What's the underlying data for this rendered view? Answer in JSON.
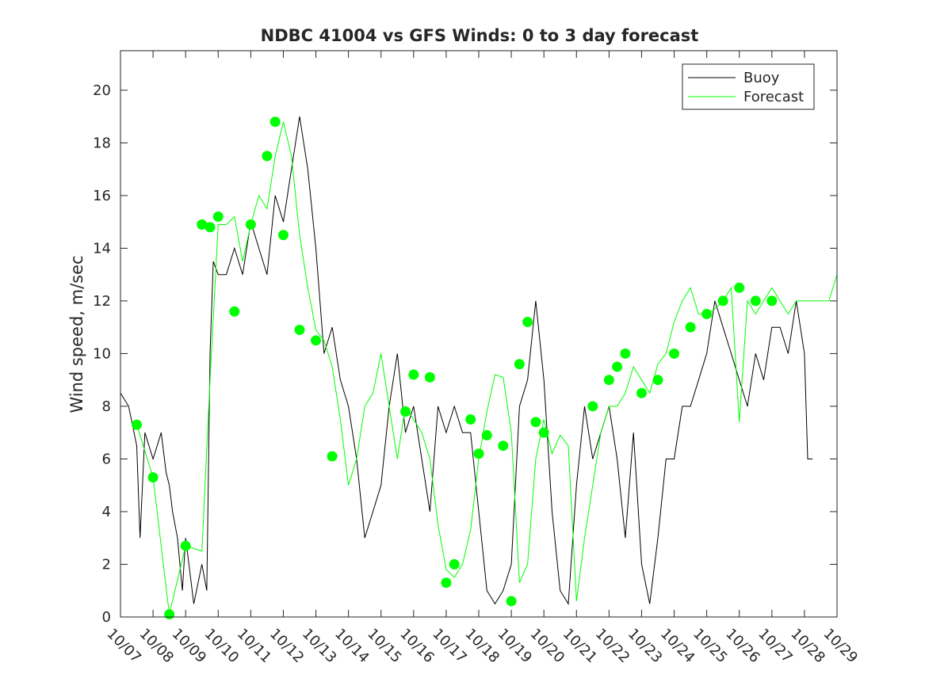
{
  "chart_data": {
    "type": "line",
    "title": "NDBC 41004 vs GFS Winds: 0 to 3 day forecast",
    "xlabel": "",
    "ylabel": "Wind speed, m/sec",
    "xlim": [
      0,
      22
    ],
    "ylim": [
      0,
      21.5
    ],
    "y_ticks": [
      "0",
      "2",
      "4",
      "6",
      "8",
      "10",
      "12",
      "14",
      "16",
      "18",
      "20"
    ],
    "x_ticks": [
      "10/07",
      "10/08",
      "10/09",
      "10/10",
      "10/11",
      "10/12",
      "10/13",
      "10/14",
      "10/15",
      "10/16",
      "10/17",
      "10/18",
      "10/19",
      "10/20",
      "10/21",
      "10/22",
      "10/23",
      "10/24",
      "10/25",
      "10/26",
      "10/27",
      "10/28",
      "10/29"
    ],
    "legend": {
      "position": "top-right",
      "entries": [
        "Buoy",
        "Forecast"
      ]
    },
    "colors": {
      "buoy": "#000000",
      "forecast": "#00ff00",
      "axis": "#262626"
    },
    "series": [
      {
        "name": "Buoy",
        "x": [
          0.0,
          0.25,
          0.5,
          0.6,
          0.75,
          1.0,
          1.25,
          1.4,
          1.5,
          1.6,
          1.75,
          1.9,
          2.0,
          2.25,
          2.5,
          2.65,
          2.75,
          2.85,
          3.0,
          3.25,
          3.5,
          3.75,
          4.0,
          4.25,
          4.5,
          4.75,
          5.0,
          5.25,
          5.5,
          5.75,
          6.0,
          6.25,
          6.5,
          6.75,
          7.0,
          7.25,
          7.5,
          7.75,
          8.0,
          8.25,
          8.5,
          8.75,
          9.0,
          9.25,
          9.5,
          9.75,
          10.0,
          10.25,
          10.5,
          10.75,
          11.0,
          11.25,
          11.5,
          11.75,
          12.0,
          12.25,
          12.5,
          12.75,
          13.0,
          13.25,
          13.5,
          13.75,
          14.0,
          14.25,
          14.5,
          14.75,
          15.0,
          15.25,
          15.5,
          15.75,
          16.0,
          16.25,
          16.5,
          16.75,
          17.0,
          17.25,
          17.5,
          17.75,
          18.0,
          18.25,
          18.5,
          18.75,
          19.0,
          19.25,
          19.5,
          19.75,
          20.0,
          20.25,
          20.5,
          20.75,
          21.0,
          21.1,
          21.25
        ],
        "y": [
          8.5,
          8,
          6.5,
          3,
          7,
          6,
          7,
          5.5,
          5,
          4,
          3,
          1,
          3,
          0.5,
          2,
          1,
          10,
          13.5,
          13,
          13,
          14,
          13,
          15,
          14,
          13,
          16,
          15,
          17,
          19,
          17,
          14,
          10,
          11,
          9,
          8,
          6,
          3,
          4,
          5,
          8,
          10,
          7,
          8,
          6,
          4,
          8,
          7,
          8,
          7,
          7,
          4,
          1,
          0.5,
          1,
          2,
          8,
          9,
          12,
          9,
          4,
          1,
          0.5,
          5,
          8,
          6,
          7,
          8,
          6,
          3,
          7,
          2,
          0.5,
          3,
          6,
          6,
          8,
          8,
          9,
          10,
          12,
          11,
          10,
          9,
          8,
          10,
          9,
          11,
          11,
          10,
          12,
          10,
          6,
          6
        ]
      },
      {
        "name": "Forecast",
        "x": [
          0.5,
          1.0,
          1.5,
          2.0,
          2.5,
          2.75,
          3.0,
          3.25,
          3.5,
          3.75,
          4.0,
          4.25,
          4.5,
          4.75,
          5.0,
          5.25,
          5.5,
          5.75,
          6.0,
          6.25,
          6.5,
          6.75,
          7.0,
          7.25,
          7.5,
          7.75,
          8.0,
          8.25,
          8.5,
          8.75,
          9.0,
          9.25,
          9.5,
          9.75,
          10.0,
          10.25,
          10.5,
          10.75,
          11.0,
          11.25,
          11.5,
          11.75,
          12.0,
          12.25,
          12.5,
          12.75,
          13.0,
          13.25,
          13.5,
          13.75,
          14.0,
          14.25,
          14.5,
          14.75,
          15.0,
          15.25,
          15.5,
          15.75,
          16.0,
          16.25,
          16.5,
          16.75,
          17.0,
          17.25,
          17.5,
          17.75,
          18.0,
          18.25,
          18.5,
          18.75,
          19.0,
          19.25,
          19.5,
          19.75,
          20.0,
          20.25,
          20.5,
          20.75,
          21.0,
          21.25,
          21.5,
          21.75,
          22.0
        ],
        "y": [
          7.3,
          5.3,
          0.1,
          2.7,
          2.5,
          9,
          14.9,
          14.9,
          15.2,
          13.5,
          14.9,
          16,
          15.5,
          17.5,
          18.8,
          17.5,
          14.5,
          12.5,
          10.9,
          10.5,
          9.5,
          7.5,
          5,
          6,
          8,
          8.5,
          10,
          8,
          6,
          8,
          7.5,
          7,
          6,
          3.5,
          1.8,
          1.5,
          2,
          3.3,
          6,
          7.8,
          9.2,
          9.1,
          7,
          1.3,
          2,
          6,
          7.5,
          6.2,
          6.9,
          6.5,
          0.6,
          3,
          5,
          7,
          8,
          8,
          8.5,
          9.5,
          9,
          8.5,
          9.6,
          10,
          11.2,
          12,
          12.5,
          11.5,
          11.5,
          11.7,
          12,
          12.5,
          7.4,
          12,
          11.5,
          12,
          12.5,
          12,
          11.5,
          12,
          12,
          12,
          12,
          12,
          13
        ]
      }
    ],
    "markers": {
      "name": "Forecast",
      "x": [
        0.5,
        1.0,
        1.5,
        2.0,
        2.5,
        2.75,
        3.0,
        3.5,
        4.0,
        4.5,
        4.75,
        5.0,
        5.5,
        6.0,
        6.5,
        8.75,
        9.0,
        9.5,
        10.0,
        10.25,
        10.75,
        11.0,
        11.25,
        11.75,
        12.0,
        12.25,
        12.5,
        12.75,
        13.0,
        14.5,
        15.0,
        15.25,
        15.5,
        16.0,
        16.5,
        17.0,
        17.5,
        18.0,
        18.5,
        19.0,
        19.5,
        20.0
      ],
      "y": [
        7.3,
        5.3,
        0.1,
        2.7,
        14.9,
        14.8,
        15.2,
        11.6,
        14.9,
        17.5,
        18.8,
        14.5,
        10.9,
        10.5,
        6.1,
        7.8,
        9.2,
        9.1,
        1.3,
        2.0,
        7.5,
        6.2,
        6.9,
        6.5,
        0.6,
        9.6,
        11.2,
        7.4,
        7.0,
        8.0,
        9.0,
        9.5,
        10.0,
        8.5,
        9.0,
        10.0,
        11.0,
        11.5,
        12.0,
        12.5,
        12.0,
        12.0
      ]
    }
  }
}
